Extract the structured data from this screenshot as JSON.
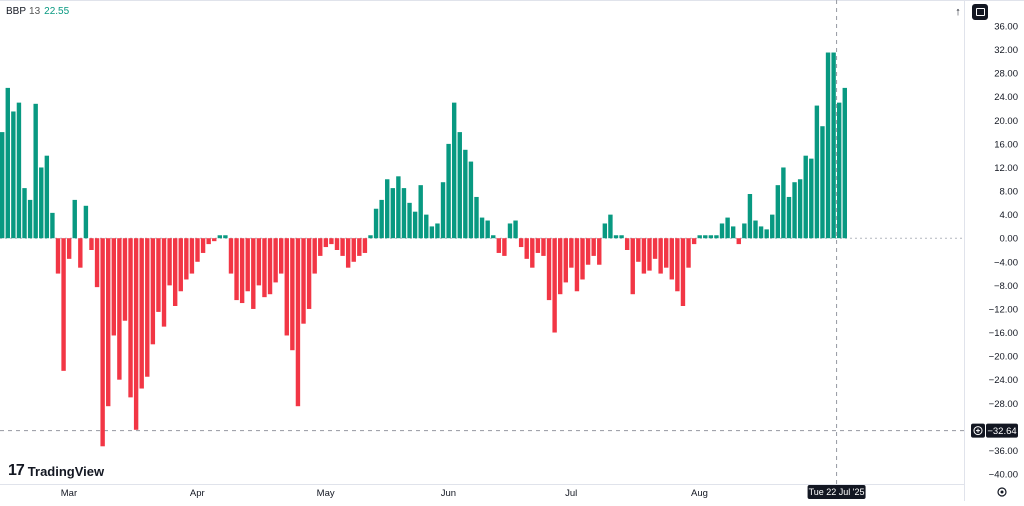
{
  "indicator": {
    "name": "BBP",
    "length": "13",
    "value": "22.55"
  },
  "logo": {
    "mark": "17",
    "text": "TradingView"
  },
  "icons": {
    "arrow": "up-arrow-icon",
    "panel": "panel-toggle-icon",
    "settings": "gear-icon",
    "add": "plus-circle-icon"
  },
  "colors": {
    "positive": "#089981",
    "negative": "#F23645",
    "crosshair_label_bg": "#131722"
  },
  "crosshair": {
    "price_label": "−32.64",
    "price_value": -32.64,
    "date_label": "Tue 22 Jul '25"
  },
  "chart_data": {
    "type": "bar",
    "ylim": [
      -40,
      38
    ],
    "yticks": [
      36,
      32,
      28,
      24,
      20,
      16,
      12,
      8,
      4,
      0,
      -4,
      -8,
      -12,
      -16,
      -20,
      -24,
      -28,
      -32,
      -36,
      -40
    ],
    "ytick_labels": [
      "36.00",
      "32.00",
      "28.00",
      "24.00",
      "20.00",
      "16.00",
      "12.00",
      "8.00",
      "4.00",
      "0.00",
      "−4.00",
      "−8.00",
      "−12.00",
      "−16.00",
      "−20.00",
      "−24.00",
      "−28.00",
      "−32.00",
      "−36.00",
      "−40.00"
    ],
    "xticks": [
      {
        "label": "Mar",
        "index": 12
      },
      {
        "label": "Apr",
        "index": 35
      },
      {
        "label": "May",
        "index": 58
      },
      {
        "label": "Jun",
        "index": 80
      },
      {
        "label": "Jul",
        "index": 102
      },
      {
        "label": "Aug",
        "index": 125
      }
    ],
    "series": [
      {
        "values": [
          18,
          25.5,
          21.5,
          23,
          8.5,
          6.5,
          22.8,
          12,
          14,
          4.3,
          -6,
          -22.5,
          -3.5,
          6.5,
          -5,
          5.5,
          -2,
          -8.3,
          -35.3,
          -28.5,
          -16.5,
          -24,
          -14,
          -27,
          -32.5,
          -25.5,
          -23.5,
          -18,
          -12.5,
          -15,
          -8,
          -11.5,
          -9,
          -7,
          -6,
          -4,
          -2.5,
          -1,
          -0.5,
          0.5,
          0.5,
          -6,
          -10.5,
          -11,
          -9,
          -12,
          -8,
          -10,
          -9.5,
          -7.5,
          -6,
          -16.5,
          -19,
          -28.5,
          -14.5,
          -12,
          -6,
          -3,
          -1.5,
          -1,
          -2,
          -3,
          -5,
          -4,
          -3,
          -2.5,
          0.5,
          5,
          6.5,
          10,
          8.5,
          10.5,
          8.5,
          6,
          4.5,
          9,
          4,
          2,
          2.5,
          9.5,
          16,
          23,
          18,
          15,
          13,
          7,
          3.5,
          3,
          0.5,
          -2.5,
          -3,
          2.5,
          3,
          -1.5,
          -3.5,
          -5,
          -2.5,
          -3,
          -10.5,
          -16,
          -9.5,
          -7.5,
          -5,
          -9,
          -7,
          -4.5,
          -3,
          -4.5,
          2.5,
          4,
          0.5,
          0.5,
          -2,
          -9.5,
          -4,
          -6,
          -5.5,
          -3.5,
          -6,
          -5,
          -7,
          -9,
          -11.5,
          -5,
          -1,
          0.5,
          0.5,
          0.5,
          0.5,
          2.5,
          3.5,
          2,
          -1,
          2.5,
          7.5,
          3,
          2,
          1.5,
          4,
          9,
          12,
          7,
          9.5,
          10,
          14,
          13.5,
          22.5,
          19,
          31.5,
          31.5,
          23,
          25.5
        ]
      }
    ]
  }
}
